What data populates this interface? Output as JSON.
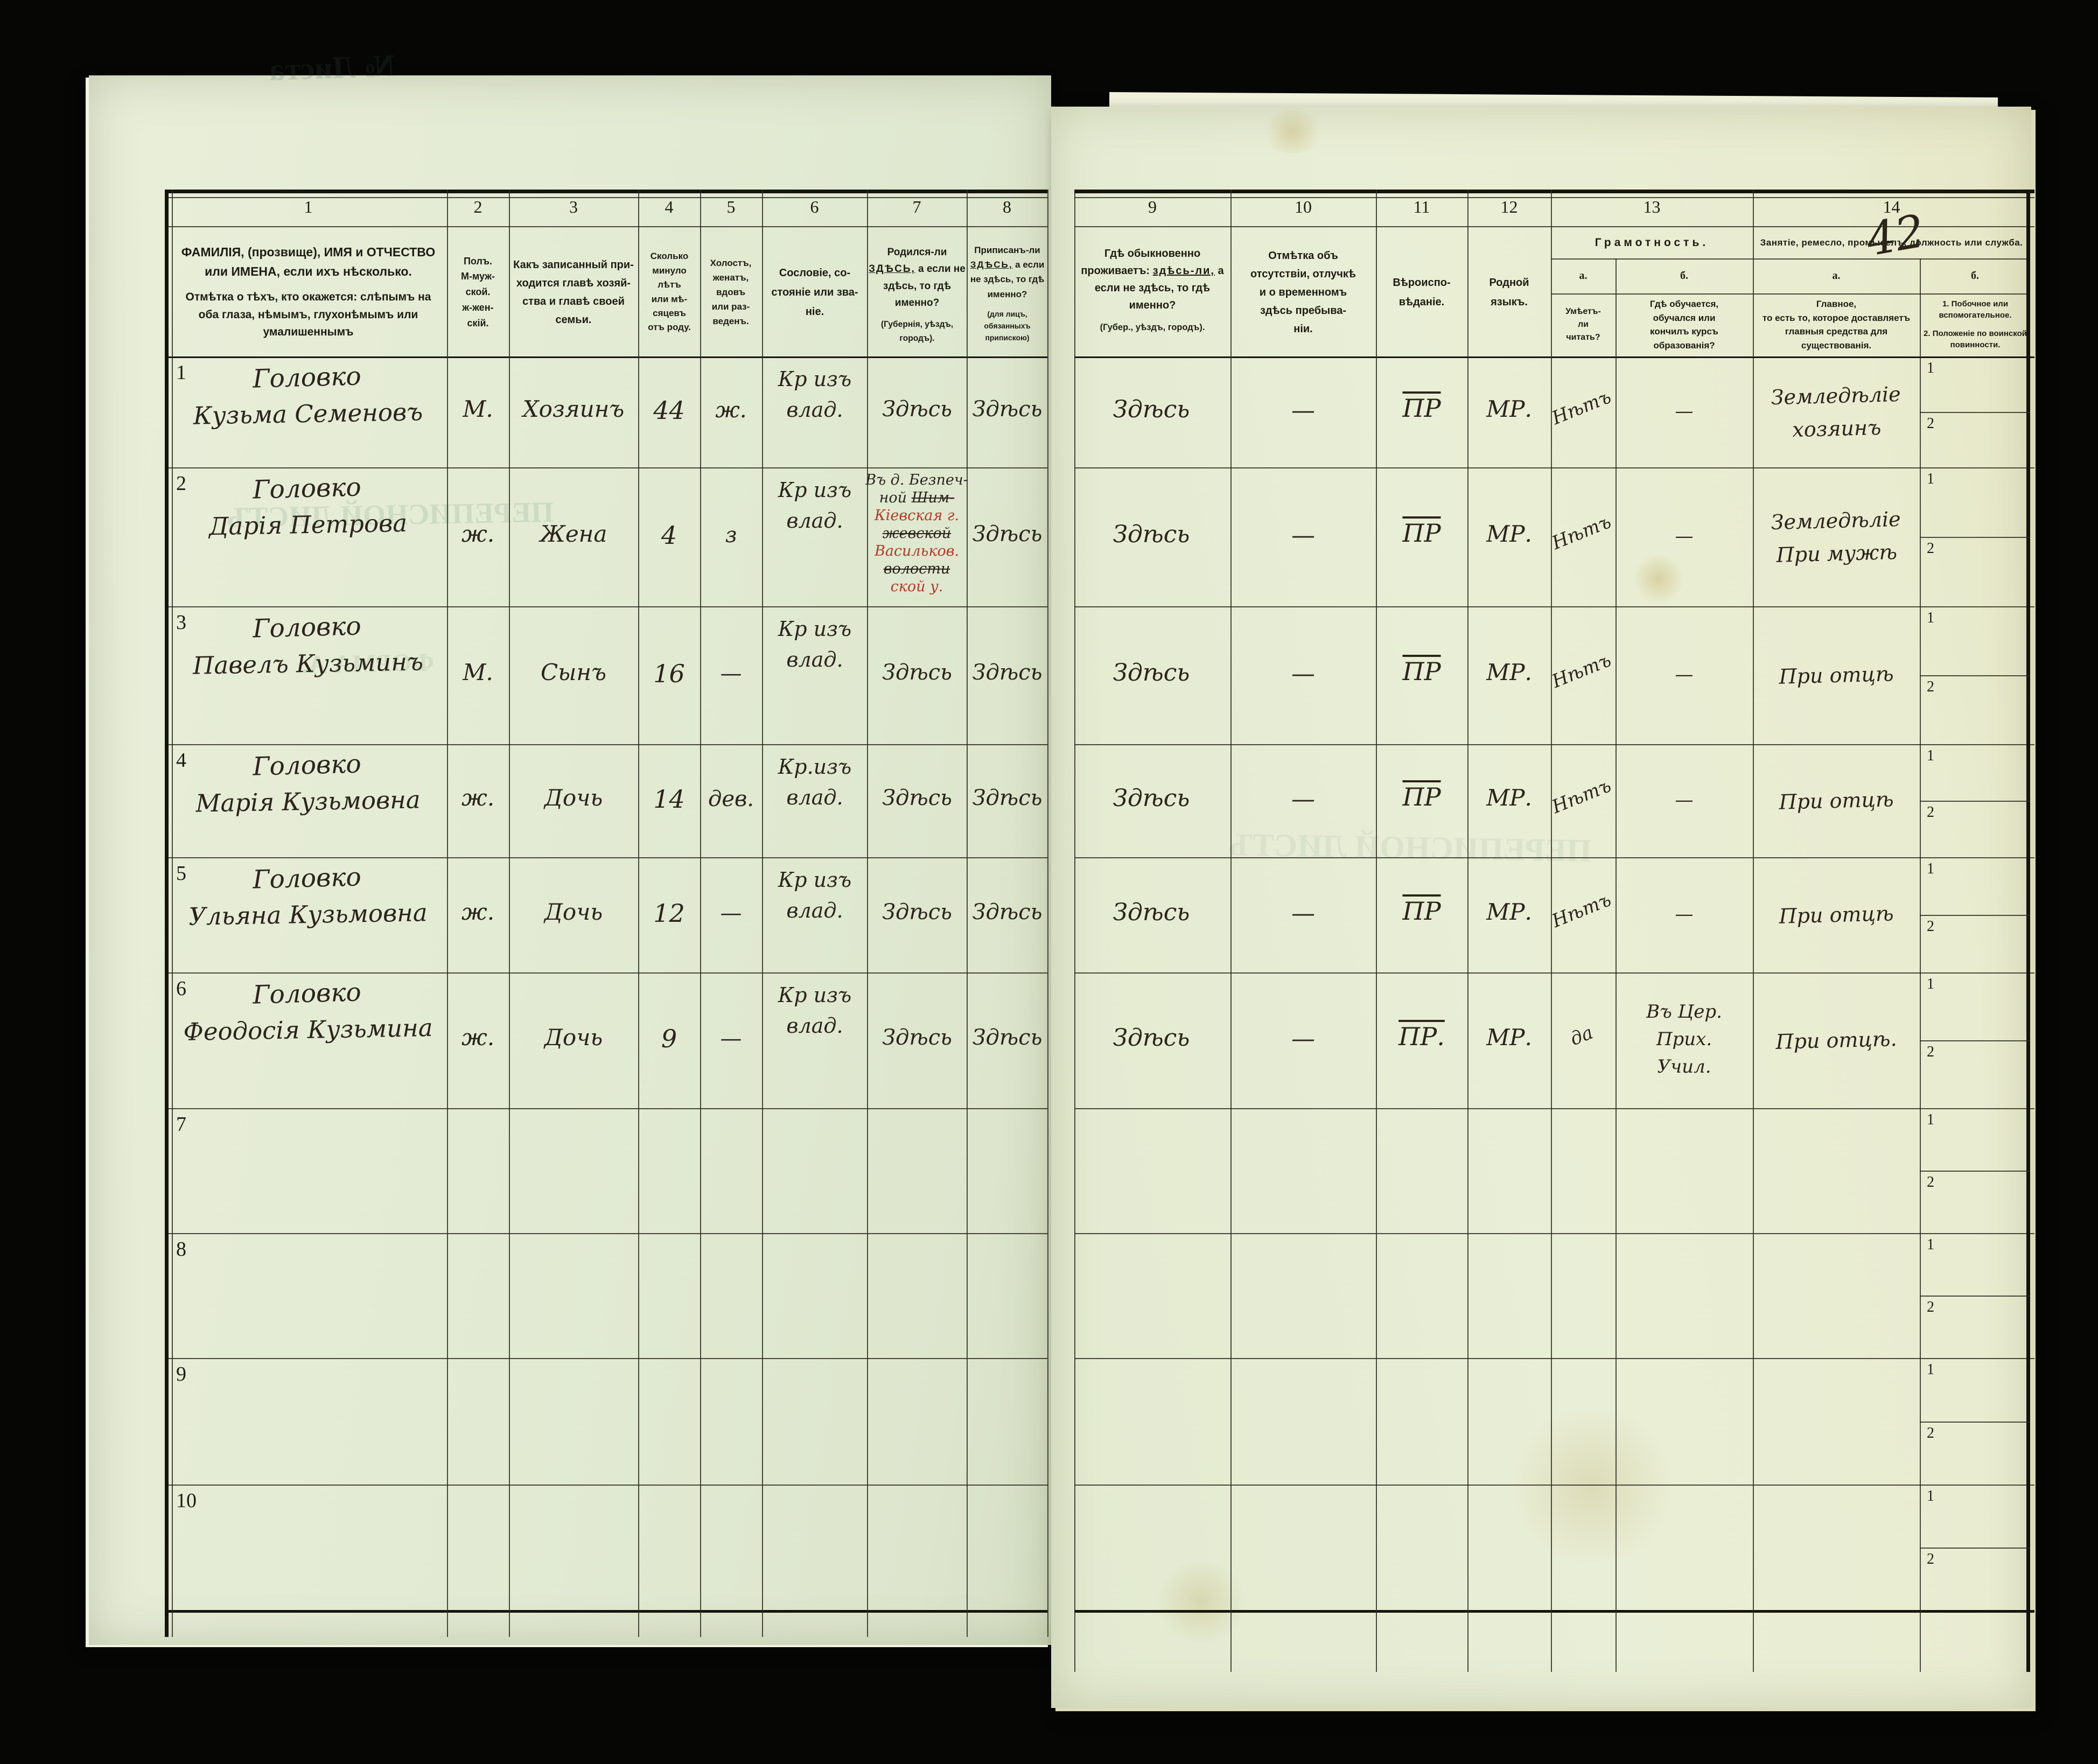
{
  "document": {
    "page_number": "42"
  },
  "table": {
    "column_numbers": [
      "1",
      "2",
      "3",
      "4",
      "5",
      "6",
      "7",
      "8",
      "9",
      "10",
      "11",
      "12",
      "13",
      "14"
    ],
    "headers": {
      "c1_main": "ФАМИЛІЯ, (прозвище), ИМЯ и ОТЧЕСТВО или ИМЕНА, если ихъ нѣсколько.",
      "c1_note": "Отмѣтка о тѣхъ, кто окажется: слѣпымъ на оба глаза, нѣмымъ, глухонѣмымъ или умалишеннымъ",
      "c2": "Полъ.\nМ-муж-\nской.\nж-жен-\nскій.",
      "c3": "Какъ записанный при-\nходится главѣ хозяй-\nства и главѣ своей\nсемьи.",
      "c4": "Сколько\nминуло\nлѣтъ\nили мѣ-\nсяцевъ\nотъ роду.",
      "c5": "Холостъ,\nженатъ,\nвдовъ\nили раз-\nведенъ.",
      "c6": "Сословіе, со-\nстояніе или зва-\nніе.",
      "c7_pre": "Родился-ли ",
      "c7_emph": "ЗДѢСЬ,",
      "c7_post": " а если не здѣсь, то гдѣ именно?",
      "c7_note": "(Губернія, уѣздъ, городъ).",
      "c8_pre": "Приписанъ-ли ",
      "c8_emph": "ЗДѢСЬ,",
      "c8_post": " а если не здѣсь, то гдѣ именно?",
      "c8_note": "(для лицъ, обязанныхъ припискою)",
      "c9_pre": "Гдѣ обыкновенно проживаетъ: ",
      "c9_emph": "здѣсь-ли,",
      "c9_post": " а если не здѣсь, то гдѣ именно?",
      "c9_note": "(Губер., уѣздъ, городъ).",
      "c10": "Отмѣтка объ\nотсутствіи, отлучкѣ\nи о временномъ\nздѣсь пребыва-\nніи.",
      "c11": "Вѣроиспо-\nвѣданіе.",
      "c12": "Родной\nязыкъ.",
      "c13_label": "Грамотность.",
      "c13a_label": "а.",
      "c13b_label": "б.",
      "c13a_text": "Умѣетъ-\nли\nчитать?",
      "c13b_text": "Гдѣ обучается,\nобучался или\nкончилъ курсъ\nобразованія?",
      "c14_label": "Занятіе, ремесло, промыселъ, должность или служба.",
      "c14a_label": "а.",
      "c14b_label": "б.",
      "c14a_text": "Главное,\nто есть то, которое доставляетъ\nглавныя средства для существованія.",
      "c14b_text_1": "1. Побочное или вспомогательное.",
      "c14b_text_2": "2. Положеніе по воинской повинности.",
      "subrow_1": "1",
      "subrow_2": "2"
    },
    "rows": [
      {
        "num": "1",
        "surname": "Головко",
        "name": "Кузьма Семеновъ",
        "sex": "М.",
        "relation": "Хозяинъ",
        "age": "44",
        "marital": "ж.",
        "estate": "Кр изъ\nвлад.",
        "born": "Здѣсь",
        "registered": "Здѣсь",
        "resides": "Здѣсь",
        "absence": "—",
        "religion": "ПР",
        "language": "МР.",
        "literate": "Нѣтъ",
        "education": "—",
        "occupation": "Земледѣліе\nхозяинъ"
      },
      {
        "num": "2",
        "surname": "Головко",
        "name": "Дарія Петрова",
        "sex": "ж.",
        "relation": "Жена",
        "age": "4",
        "marital": "з",
        "estate": "Кр изъ\nвлад.",
        "born": {
          "lines": [
            [
              {
                "t": "Въ д. Безпеч-",
                "c": "ink"
              }
            ],
            [
              {
                "t": "ной ",
                "c": "ink"
              },
              {
                "t": "Шим-",
                "c": "ink struck"
              }
            ],
            [
              {
                "t": "Кіевская г.",
                "c": "red"
              }
            ],
            [
              {
                "t": "жевской",
                "c": "ink struck"
              }
            ],
            [
              {
                "t": "Васильков.",
                "c": "red"
              }
            ],
            [
              {
                "t": "волости",
                "c": "ink struck"
              }
            ],
            [
              {
                "t": "ской у.",
                "c": "red"
              }
            ]
          ]
        },
        "registered": "Здѣсь",
        "resides": "Здѣсь",
        "absence": "—",
        "religion": "ПР",
        "language": "МР.",
        "literate": "Нѣтъ",
        "education": "—",
        "occupation": "Земледѣліе\nПри мужѣ"
      },
      {
        "num": "3",
        "surname": "Головко",
        "name": "Павелъ Кузьминъ",
        "sex": "М.",
        "relation": "Сынъ",
        "age": "16",
        "marital": "—",
        "estate": "Кр изъ\nвлад.",
        "born": "Здѣсь",
        "registered": "Здѣсь",
        "resides": "Здѣсь",
        "absence": "—",
        "religion": "ПР",
        "language": "МР.",
        "literate": "Нѣтъ",
        "education": "—",
        "occupation": "При отцѣ"
      },
      {
        "num": "4",
        "surname": "Головко",
        "name": "Марія Кузьмовна",
        "sex": "ж.",
        "relation": "Дочь",
        "age": "14",
        "marital": "дев.",
        "estate": "Кр.изъ\nвлад.",
        "born": "Здѣсь",
        "registered": "Здѣсь",
        "resides": "Здѣсь",
        "absence": "—",
        "religion": "ПР",
        "language": "МР.",
        "literate": "Нѣтъ",
        "education": "—",
        "occupation": "При отцѣ"
      },
      {
        "num": "5",
        "surname": "Головко",
        "name": "Ульяна Кузьмовна",
        "sex": "ж.",
        "relation": "Дочь",
        "age": "12",
        "marital": "—",
        "estate": "Кр изъ\nвлад.",
        "born": "Здѣсь",
        "registered": "Здѣсь",
        "resides": "Здѣсь",
        "absence": "—",
        "religion": "ПР",
        "language": "МР.",
        "literate": "Нѣтъ",
        "education": "—",
        "occupation": "При отцѣ"
      },
      {
        "num": "6",
        "surname": "Головко",
        "name": "Феодосія Кузьмина",
        "sex": "ж.",
        "relation": "Дочь",
        "age": "9",
        "marital": "—",
        "estate": "Кр изъ\nвлад.",
        "born": "Здѣсь",
        "registered": "Здѣсь",
        "resides": "Здѣсь",
        "absence": "—",
        "religion": "ПР.",
        "language": "МР.",
        "literate": "да",
        "education": "Въ Цер.\nПрих.\nУчил.",
        "occupation": "При отцѣ."
      },
      {
        "num": "7",
        "surname": "",
        "name": "",
        "sex": "",
        "relation": "",
        "age": "",
        "marital": "",
        "estate": "",
        "born": "",
        "registered": "",
        "resides": "",
        "absence": "",
        "religion": "",
        "language": "",
        "literate": "",
        "education": "",
        "occupation": ""
      },
      {
        "num": "8",
        "surname": "",
        "name": "",
        "sex": "",
        "relation": "",
        "age": "",
        "marital": "",
        "estate": "",
        "born": "",
        "registered": "",
        "resides": "",
        "absence": "",
        "religion": "",
        "language": "",
        "literate": "",
        "education": "",
        "occupation": ""
      },
      {
        "num": "9",
        "surname": "",
        "name": "",
        "sex": "",
        "relation": "",
        "age": "",
        "marital": "",
        "estate": "",
        "born": "",
        "registered": "",
        "resides": "",
        "absence": "",
        "religion": "",
        "language": "",
        "literate": "",
        "education": "",
        "occupation": ""
      },
      {
        "num": "10",
        "surname": "",
        "name": "",
        "sex": "",
        "relation": "",
        "age": "",
        "marital": "",
        "estate": "",
        "born": "",
        "registered": "",
        "resides": "",
        "absence": "",
        "religion": "",
        "language": "",
        "literate": "",
        "education": "",
        "occupation": ""
      }
    ]
  },
  "bleed_through": {
    "g1": "№ Листа",
    "g2": "ПЕРЕПИСНОЙ ЛИСТЪ",
    "g3": "ФОРМА А.",
    "g4": "ПЕРЕПИСНОЙ ЛИСТЪ"
  }
}
